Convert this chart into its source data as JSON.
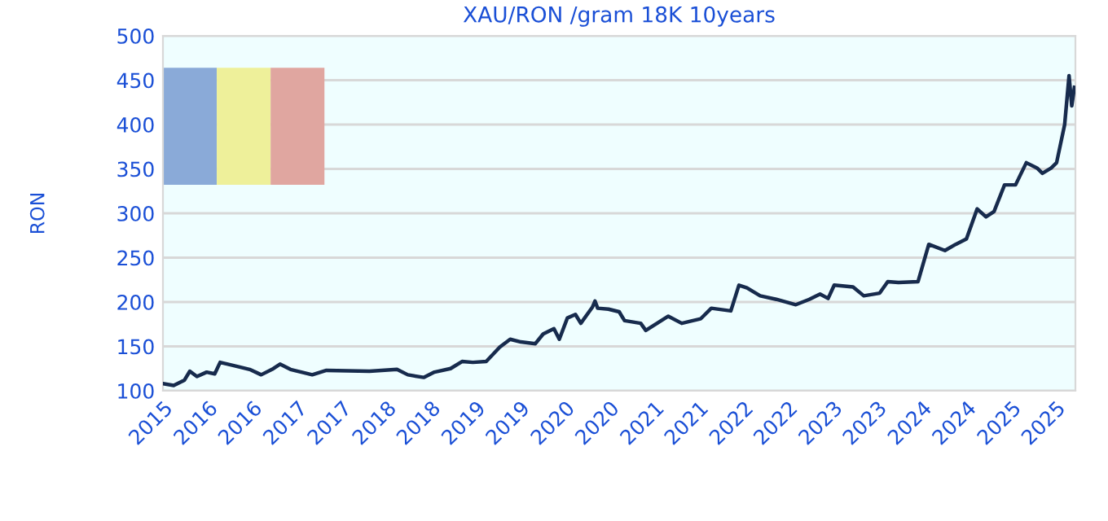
{
  "chart_data": {
    "type": "line",
    "title": "XAU/RON /gram 18K 10years",
    "ylabel": "RON",
    "x": [
      "2015-07-01",
      "2015-08-14",
      "2015-09-27",
      "2015-10-19",
      "2015-11-17",
      "2015-12-27",
      "2016-01-29",
      "2016-02-20",
      "2016-05-07",
      "2016-06-20",
      "2016-08-06",
      "2016-09-19",
      "2016-10-22",
      "2016-12-04",
      "2017-03-03",
      "2017-04-30",
      "2017-10-23",
      "2018-02-13",
      "2018-03-29",
      "2018-06-02",
      "2018-07-16",
      "2018-09-20",
      "2018-11-06",
      "2018-12-20",
      "2019-02-13",
      "2019-04-09",
      "2019-05-22",
      "2019-07-05",
      "2019-09-02",
      "2019-10-04",
      "2019-11-17",
      "2019-12-09",
      "2020-01-11",
      "2020-02-13",
      "2020-03-06",
      "2020-04-22",
      "2020-05-03",
      "2020-05-14",
      "2020-06-27",
      "2020-08-10",
      "2020-09-01",
      "2020-11-06",
      "2020-11-27",
      "2021-02-27",
      "2021-04-23",
      "2021-07-09",
      "2021-08-22",
      "2021-11-10",
      "2021-12-13",
      "2022-01-15",
      "2022-03-10",
      "2022-05-15",
      "2022-08-03",
      "2022-09-27",
      "2022-11-10",
      "2022-12-13",
      "2023-01-07",
      "2023-03-25",
      "2023-05-08",
      "2023-07-12",
      "2023-08-14",
      "2023-09-27",
      "2023-12-16",
      "2024-01-29",
      "2024-04-04",
      "2024-05-18",
      "2024-07-01",
      "2024-08-14",
      "2024-09-19",
      "2024-10-22",
      "2024-12-04",
      "2025-01-18",
      "2025-03-03",
      "2025-04-16",
      "2025-05-08",
      "2025-06-13",
      "2025-07-05",
      "2025-08-07",
      "2025-08-25",
      "2025-09-05",
      "2025-09-16"
    ],
    "series": [
      {
        "color": "#172b4d",
        "values": [
          108,
          106,
          112,
          122,
          116,
          121,
          119,
          132,
          127,
          124,
          118,
          124,
          130,
          124,
          118,
          123,
          122,
          124,
          118,
          115,
          121,
          125,
          133,
          132,
          133,
          149,
          158,
          155,
          153,
          164,
          170,
          158,
          182,
          186,
          176,
          194,
          201,
          193,
          192,
          189,
          179,
          176,
          168,
          184,
          176,
          181,
          193,
          190,
          219,
          216,
          207,
          203,
          197,
          203,
          209,
          204,
          219,
          217,
          207,
          210,
          223,
          222,
          223,
          265,
          258,
          265,
          271,
          305,
          296,
          302,
          332,
          332,
          357,
          351,
          345,
          351,
          357,
          400,
          455,
          421,
          442
        ]
      }
    ],
    "xlim": [
      "2015-07-01",
      "2025-09-20"
    ],
    "xticks": [
      {
        "value": "2015-07-01",
        "label": "2015"
      },
      {
        "value": "2016-01-01",
        "label": "2016"
      },
      {
        "value": "2016-07-01",
        "label": "2016"
      },
      {
        "value": "2017-01-01",
        "label": "2017"
      },
      {
        "value": "2017-07-01",
        "label": "2017"
      },
      {
        "value": "2018-01-01",
        "label": "2018"
      },
      {
        "value": "2018-07-01",
        "label": "2018"
      },
      {
        "value": "2019-01-01",
        "label": "2019"
      },
      {
        "value": "2019-07-01",
        "label": "2019"
      },
      {
        "value": "2020-01-01",
        "label": "2020"
      },
      {
        "value": "2020-07-01",
        "label": "2020"
      },
      {
        "value": "2021-01-01",
        "label": "2021"
      },
      {
        "value": "2021-07-01",
        "label": "2021"
      },
      {
        "value": "2022-01-01",
        "label": "2022"
      },
      {
        "value": "2022-07-01",
        "label": "2022"
      },
      {
        "value": "2023-01-01",
        "label": "2023"
      },
      {
        "value": "2023-07-01",
        "label": "2023"
      },
      {
        "value": "2024-01-01",
        "label": "2024"
      },
      {
        "value": "2024-07-01",
        "label": "2024"
      },
      {
        "value": "2025-01-01",
        "label": "2025"
      },
      {
        "value": "2025-07-01",
        "label": "2025"
      }
    ],
    "ylim": [
      100,
      500
    ],
    "yticks": [
      100,
      150,
      200,
      250,
      300,
      350,
      400,
      450,
      500
    ],
    "grid": "y",
    "legend": false,
    "marker": "none",
    "line_style": "solid"
  }
}
